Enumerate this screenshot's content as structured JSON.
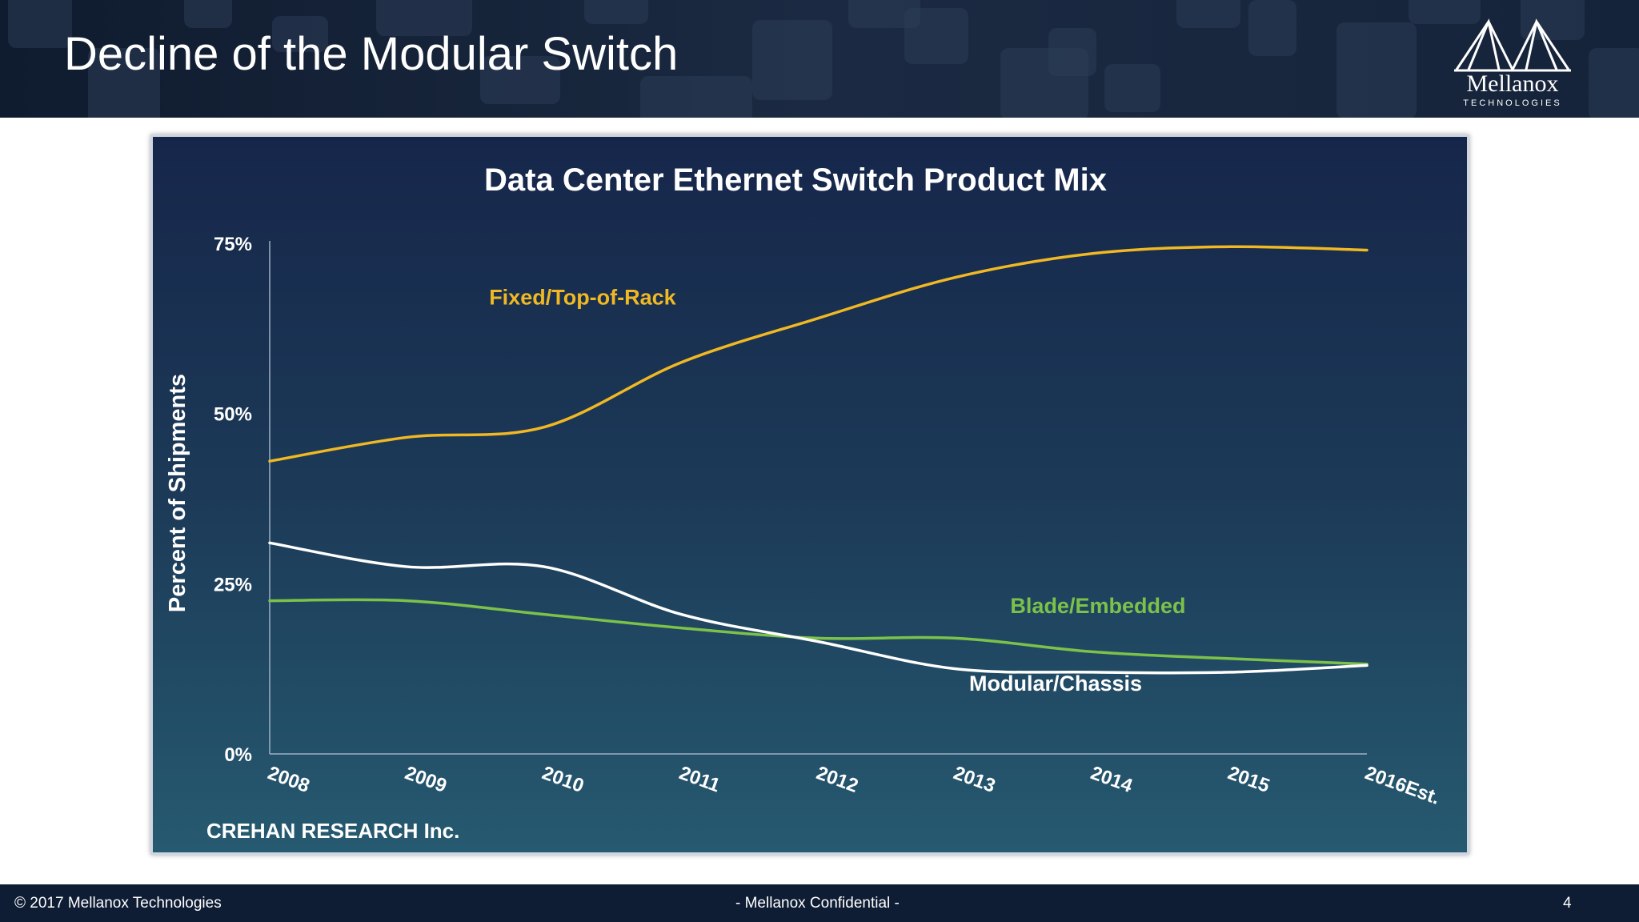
{
  "slide": {
    "title": "Decline of the Modular Switch",
    "logo": {
      "name": "Mellanox",
      "subtitle": "TECHNOLOGIES"
    }
  },
  "chart_data": {
    "type": "line",
    "title": "Data Center Ethernet Switch Product Mix",
    "ylabel": "Percent of Shipments",
    "xlabel": "",
    "categories": [
      "2008",
      "2009",
      "2010",
      "2011",
      "2012",
      "2013",
      "2014",
      "2015",
      "2016Est."
    ],
    "ylim": [
      0,
      75
    ],
    "yticks": [
      "0%",
      "25%",
      "50%",
      "75%"
    ],
    "series": [
      {
        "name": "Fixed/Top-of-Rack",
        "color": "#f0b823",
        "values": [
          43,
          46.5,
          48,
          57.5,
          64,
          70,
          73.5,
          74.5,
          74
        ]
      },
      {
        "name": "Blade/Embedded",
        "color": "#7cc24a",
        "values": [
          22.5,
          22.5,
          20.5,
          18.5,
          17,
          17,
          15,
          14,
          13.2
        ]
      },
      {
        "name": "Modular/Chassis",
        "color": "#ffffff",
        "values": [
          31,
          27.5,
          27.5,
          20.5,
          16.5,
          12.5,
          12,
          12,
          13
        ]
      }
    ],
    "source": "CREHAN RESEARCH Inc.",
    "grid": false,
    "legend": "inline labels"
  },
  "footer": {
    "copyright": "© 2017 Mellanox Technologies",
    "confidential": "- Mellanox Confidential -",
    "page": "4"
  }
}
